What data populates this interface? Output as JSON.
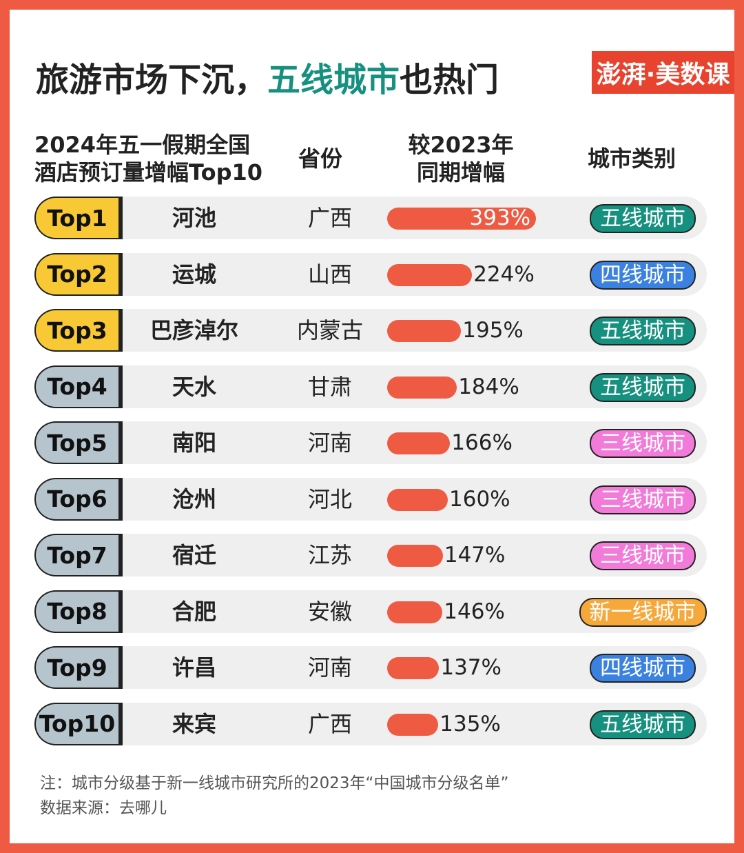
{
  "chart_data": {
    "type": "table-bar",
    "title": [
      "旅游市场下沉，",
      "五线城市",
      "也热门"
    ],
    "logo": "澎湃·美数课",
    "headers": [
      "2024年五一假期全国\n酒店预订量增幅Top10",
      "省份",
      "较2023年\n同期增幅",
      "城市类别"
    ],
    "categories": [
      "Top1",
      "Top2",
      "Top3",
      "Top4",
      "Top5",
      "Top6",
      "Top7",
      "Top8",
      "Top9",
      "Top10"
    ],
    "cities": [
      "河池",
      "运城",
      "巴彦淖尔",
      "天水",
      "南阳",
      "沧州",
      "宿迁",
      "合肥",
      "许昌",
      "来宾"
    ],
    "provinces": [
      "广西",
      "山西",
      "内蒙古",
      "甘肃",
      "河南",
      "河北",
      "江苏",
      "安徽",
      "河南",
      "广西"
    ],
    "values": [
      393,
      224,
      195,
      184,
      166,
      160,
      147,
      146,
      137,
      135
    ],
    "value_labels": [
      "393%",
      "224%",
      "195%",
      "184%",
      "166%",
      "160%",
      "147%",
      "146%",
      "137%",
      "135%"
    ],
    "color": "#ef5a43",
    "tiers": [
      "五线城市",
      "四线城市",
      "五线城市",
      "五线城市",
      "三线城市",
      "三线城市",
      "三线城市",
      "新一线城市",
      "四线城市",
      "五线城市"
    ],
    "tier_colors": {
      "五线城市": "#16907f",
      "四线城市": "#3b82e0",
      "三线城市": "#f27ad8",
      "新一线城市": "#f6a83a"
    },
    "badge_colors": [
      "#f8c935",
      "#f8c935",
      "#f8c935",
      "#b5c4cd",
      "#b5c4cd",
      "#b5c4cd",
      "#b5c4cd",
      "#b5c4cd",
      "#b5c4cd",
      "#b5c4cd"
    ],
    "notes": [
      "注：城市分级基于新一线城市研究所的2023年“中国城市分级名单”",
      "数据来源：去哪儿"
    ]
  }
}
